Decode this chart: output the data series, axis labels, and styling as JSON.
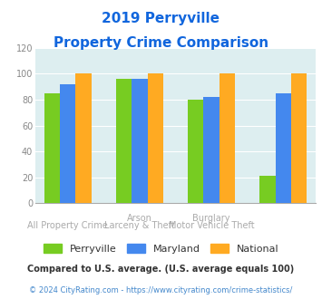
{
  "title_line1": "2019 Perryville",
  "title_line2": "Property Crime Comparison",
  "perryville": [
    85,
    96,
    80,
    21
  ],
  "maryland": [
    92,
    96,
    82,
    85
  ],
  "national": [
    100,
    100,
    100,
    100
  ],
  "perryville_color": "#77cc22",
  "maryland_color": "#4488ee",
  "national_color": "#ffaa22",
  "ylim": [
    0,
    120
  ],
  "yticks": [
    0,
    20,
    40,
    60,
    80,
    100,
    120
  ],
  "legend_labels": [
    "Perryville",
    "Maryland",
    "National"
  ],
  "top_xlabels": [
    "",
    "Arson",
    "Burglary",
    ""
  ],
  "bot_xlabels": [
    "All Property Crime",
    "Larceny & Theft",
    "Motor Vehicle Theft",
    ""
  ],
  "footnote1": "Compared to U.S. average. (U.S. average equals 100)",
  "footnote2": "© 2024 CityRating.com - https://www.cityrating.com/crime-statistics/",
  "bg_color": "#ddeef0",
  "title_color": "#1166dd",
  "footnote1_color": "#333333",
  "footnote2_color": "#4488cc",
  "xlabel_color": "#aaaaaa"
}
